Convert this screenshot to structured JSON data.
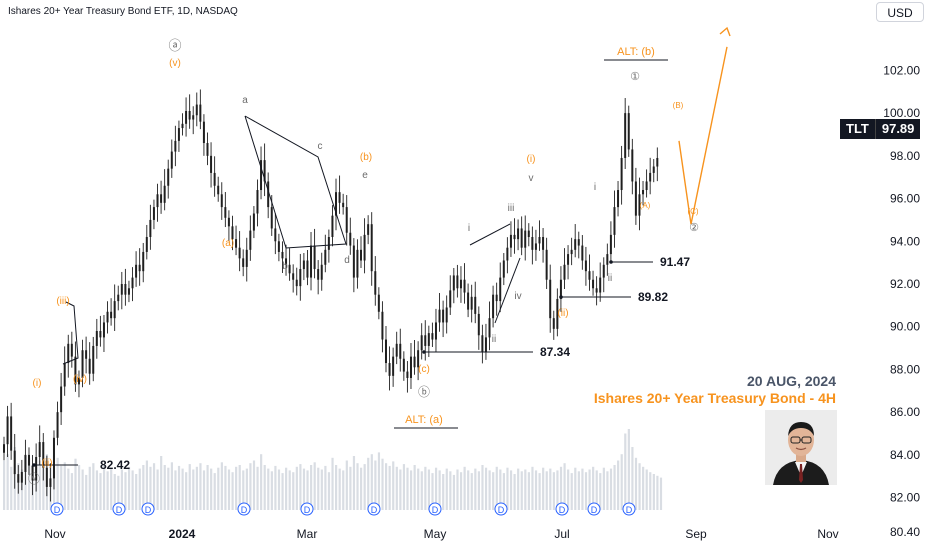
{
  "header": {
    "title": "Ishares 20+ Year Treasury Bond ETF, 1D, NASDAQ"
  },
  "currency_button": "USD",
  "ticker": {
    "symbol": "TLT",
    "price": "97.89"
  },
  "overlay": {
    "date": "20 AUG, 2024",
    "title": "Ishares 20+ Year Treasury Bond - 4H"
  },
  "colors": {
    "orange": "#f7931e",
    "gray": "#6b6b6b",
    "dark": "#131722",
    "volume": "#d9dde3",
    "candle": "#1f1f1f"
  },
  "chart_data": {
    "type": "candlestick",
    "y_axis": {
      "ticks": [
        80.4,
        82.0,
        84.0,
        86.0,
        88.0,
        90.0,
        92.0,
        94.0,
        96.0,
        98.0,
        100.0,
        102.0
      ],
      "range": [
        80.4,
        103.5
      ]
    },
    "x_axis": {
      "ticks": [
        "Nov",
        "2024",
        "Mar",
        "May",
        "Jul",
        "Sep",
        "Nov"
      ]
    },
    "closes": [
      84.5,
      85.8,
      84.2,
      83.1,
      82.7,
      83.2,
      84.0,
      83.5,
      82.8,
      83.9,
      84.6,
      83.4,
      82.5,
      82.9,
      84.8,
      86.0,
      87.2,
      88.3,
      89.2,
      88.6,
      87.3,
      87.6,
      88.9,
      88.5,
      87.8,
      89.1,
      89.8,
      89.5,
      90.2,
      90.7,
      90.4,
      91.2,
      91.5,
      92.0,
      91.5,
      91.8,
      92.3,
      92.9,
      92.6,
      93.5,
      94.2,
      95.0,
      95.6,
      96.2,
      95.8,
      96.6,
      97.4,
      98.2,
      98.7,
      99.3,
      99.5,
      100.1,
      99.7,
      99.9,
      100.4,
      99.6,
      98.6,
      98.0,
      97.2,
      96.6,
      96.2,
      95.6,
      95.1,
      94.7,
      94.1,
      93.7,
      93.2,
      92.8,
      93.6,
      94.5,
      95.3,
      96.4,
      97.8,
      96.8,
      95.6,
      94.6,
      94.0,
      93.5,
      93.2,
      92.9,
      92.5,
      92.2,
      91.9,
      92.7,
      93.1,
      92.3,
      93.8,
      92.7,
      92.2,
      92.9,
      93.6,
      94.2,
      95.2,
      96.3,
      95.8,
      95.6,
      94.4,
      93.8,
      92.3,
      93.6,
      93.1,
      94.3,
      94.8,
      92.6,
      91.5,
      90.7,
      89.4,
      88.3,
      87.7,
      88.6,
      89.2,
      88.5,
      87.9,
      87.6,
      88.6,
      88.1,
      88.9,
      89.6,
      89.1,
      89.7,
      89.4,
      90.2,
      90.8,
      90.2,
      90.9,
      91.7,
      92.4,
      91.8,
      92.2,
      91.6,
      90.8,
      91.4,
      90.6,
      89.6,
      88.8,
      89.5,
      90.4,
      91.5,
      91.2,
      92.3,
      93.1,
      93.7,
      94.3,
      94.1,
      94.6,
      93.7,
      94.5,
      94.2,
      93.6,
      93.9,
      94.2,
      93.6,
      92.2,
      90.4,
      89.9,
      91.3,
      92.2,
      92.9,
      93.4,
      93.6,
      94.1,
      93.8,
      93.1,
      92.6,
      92.2,
      91.8,
      91.6,
      92.3,
      92.9,
      93.4,
      94.3,
      95.6,
      96.4,
      97.9,
      100.0,
      98.3,
      96.8,
      95.2,
      96.2,
      96.4,
      96.8,
      97.2,
      97.5,
      97.9
    ],
    "volume": [
      0.55,
      0.62,
      0.48,
      0.7,
      0.52,
      0.45,
      0.6,
      0.58,
      0.42,
      0.5,
      0.55,
      0.47,
      0.62,
      0.51,
      0.44,
      0.58,
      0.49,
      0.53,
      0.46,
      0.41,
      0.57,
      0.5,
      0.45,
      0.39,
      0.48,
      0.52,
      0.44,
      0.41,
      0.5,
      0.43,
      0.46,
      0.4,
      0.38,
      0.45,
      0.42,
      0.48,
      0.44,
      0.4,
      0.46,
      0.5,
      0.55,
      0.48,
      0.52,
      0.45,
      0.6,
      0.5,
      0.47,
      0.53,
      0.44,
      0.49,
      0.46,
      0.42,
      0.51,
      0.45,
      0.48,
      0.52,
      0.44,
      0.5,
      0.46,
      0.41,
      0.47,
      0.53,
      0.49,
      0.45,
      0.42,
      0.48,
      0.5,
      0.44,
      0.46,
      0.52,
      0.55,
      0.48,
      0.62,
      0.5,
      0.46,
      0.43,
      0.49,
      0.45,
      0.41,
      0.47,
      0.44,
      0.42,
      0.48,
      0.51,
      0.46,
      0.44,
      0.5,
      0.53,
      0.47,
      0.45,
      0.49,
      0.42,
      0.58,
      0.5,
      0.46,
      0.44,
      0.55,
      0.48,
      0.6,
      0.52,
      0.47,
      0.51,
      0.58,
      0.62,
      0.55,
      0.64,
      0.57,
      0.52,
      0.49,
      0.54,
      0.48,
      0.45,
      0.51,
      0.47,
      0.44,
      0.5,
      0.46,
      0.43,
      0.48,
      0.45,
      0.41,
      0.47,
      0.44,
      0.4,
      0.46,
      0.43,
      0.39,
      0.45,
      0.42,
      0.48,
      0.44,
      0.41,
      0.46,
      0.43,
      0.5,
      0.47,
      0.44,
      0.42,
      0.48,
      0.45,
      0.41,
      0.47,
      0.44,
      0.4,
      0.46,
      0.43,
      0.45,
      0.42,
      0.48,
      0.44,
      0.41,
      0.47,
      0.43,
      0.46,
      0.42,
      0.44,
      0.48,
      0.52,
      0.45,
      0.41,
      0.47,
      0.43,
      0.46,
      0.42,
      0.45,
      0.48,
      0.44,
      0.41,
      0.47,
      0.43,
      0.46,
      0.5,
      0.55,
      0.62,
      0.85,
      0.9,
      0.7,
      0.58,
      0.52,
      0.48,
      0.45,
      0.42,
      0.4,
      0.38,
      0.36
    ],
    "projection": [
      [
        97.9,
        98.7
      ],
      [
        94.8,
        94.8
      ],
      [
        103.1,
        103.1
      ]
    ],
    "levels": [
      {
        "label": "82.42",
        "value": 82.42
      },
      {
        "label": "87.34",
        "value": 87.34
      },
      {
        "label": "89.82",
        "value": 89.82
      },
      {
        "label": "91.47",
        "value": 91.47
      }
    ],
    "wave_labels": [
      {
        "text": "ⓐ",
        "color": "gray"
      },
      {
        "text": "(v)",
        "color": "orange"
      },
      {
        "text": "(iii)",
        "color": "orange"
      },
      {
        "text": "(iv)",
        "color": "orange"
      },
      {
        "text": "(i)",
        "color": "orange"
      },
      {
        "text": "(ii)",
        "color": "orange"
      },
      {
        "text": "ⓥ",
        "color": "gray"
      },
      {
        "text": "(a)",
        "color": "orange"
      },
      {
        "text": "a",
        "color": "gray"
      },
      {
        "text": "b",
        "color": "gray"
      },
      {
        "text": "c",
        "color": "gray"
      },
      {
        "text": "d",
        "color": "gray"
      },
      {
        "text": "e",
        "color": "gray"
      },
      {
        "text": "(b)",
        "color": "orange"
      },
      {
        "text": "(c)",
        "color": "orange"
      },
      {
        "text": "ⓑ",
        "color": "gray"
      },
      {
        "text": "ALT: (a)",
        "color": "orange"
      },
      {
        "text": "i",
        "color": "gray"
      },
      {
        "text": "ii",
        "color": "gray"
      },
      {
        "text": "iii",
        "color": "gray"
      },
      {
        "text": "iv",
        "color": "gray"
      },
      {
        "text": "v",
        "color": "gray"
      },
      {
        "text": "(i)",
        "color": "orange"
      },
      {
        "text": "(ii)",
        "color": "orange"
      },
      {
        "text": "i",
        "color": "gray"
      },
      {
        "text": "ii",
        "color": "gray"
      },
      {
        "text": "(A)",
        "color": "orange"
      },
      {
        "text": "(B)",
        "color": "orange"
      },
      {
        "text": "(C)",
        "color": "orange"
      },
      {
        "text": "①",
        "color": "gray"
      },
      {
        "text": "②",
        "color": "gray"
      },
      {
        "text": "ALT: (b)",
        "color": "orange"
      }
    ],
    "dividend_markers": [
      "D",
      "D",
      "D",
      "D",
      "D",
      "D",
      "D",
      "D",
      "D",
      "D",
      "D"
    ]
  }
}
